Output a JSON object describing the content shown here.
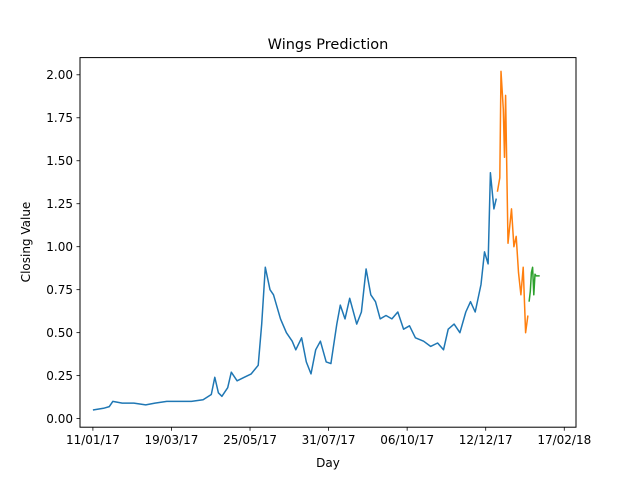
{
  "chart_data": {
    "type": "line",
    "title": "Wings Prediction",
    "xlabel": "Day",
    "ylabel": "Closing Value",
    "x_ticks": [
      "11/01/17",
      "19/03/17",
      "25/05/17",
      "31/07/17",
      "06/10/17",
      "12/12/17",
      "17/02/18"
    ],
    "y_ticks": [
      "0.00",
      "0.25",
      "0.50",
      "0.75",
      "1.00",
      "1.25",
      "1.50",
      "1.75",
      "2.00"
    ],
    "xlim": [
      "2016-12-31",
      "2018-02-27"
    ],
    "ylim": [
      -0.05,
      2.1
    ],
    "grid": false,
    "legend": "none",
    "series": [
      {
        "color": "#1f77b4",
        "points": [
          [
            "2017-01-11",
            0.05
          ],
          [
            "2017-01-20",
            0.06
          ],
          [
            "2017-01-25",
            0.07
          ],
          [
            "2017-01-28",
            0.1
          ],
          [
            "2017-02-05",
            0.09
          ],
          [
            "2017-02-15",
            0.09
          ],
          [
            "2017-02-25",
            0.08
          ],
          [
            "2017-03-05",
            0.09
          ],
          [
            "2017-03-15",
            0.1
          ],
          [
            "2017-03-25",
            0.1
          ],
          [
            "2017-04-05",
            0.1
          ],
          [
            "2017-04-15",
            0.11
          ],
          [
            "2017-04-22",
            0.14
          ],
          [
            "2017-04-25",
            0.24
          ],
          [
            "2017-04-28",
            0.15
          ],
          [
            "2017-05-01",
            0.13
          ],
          [
            "2017-05-06",
            0.18
          ],
          [
            "2017-05-09",
            0.27
          ],
          [
            "2017-05-14",
            0.22
          ],
          [
            "2017-05-20",
            0.24
          ],
          [
            "2017-05-26",
            0.26
          ],
          [
            "2017-06-01",
            0.31
          ],
          [
            "2017-06-04",
            0.55
          ],
          [
            "2017-06-07",
            0.88
          ],
          [
            "2017-06-11",
            0.75
          ],
          [
            "2017-06-14",
            0.72
          ],
          [
            "2017-06-20",
            0.58
          ],
          [
            "2017-06-25",
            0.5
          ],
          [
            "2017-06-30",
            0.45
          ],
          [
            "2017-07-03",
            0.4
          ],
          [
            "2017-07-08",
            0.47
          ],
          [
            "2017-07-12",
            0.33
          ],
          [
            "2017-07-16",
            0.26
          ],
          [
            "2017-07-20",
            0.4
          ],
          [
            "2017-07-24",
            0.45
          ],
          [
            "2017-07-29",
            0.33
          ],
          [
            "2017-08-02",
            0.32
          ],
          [
            "2017-08-07",
            0.55
          ],
          [
            "2017-08-10",
            0.66
          ],
          [
            "2017-08-14",
            0.58
          ],
          [
            "2017-08-18",
            0.7
          ],
          [
            "2017-08-24",
            0.55
          ],
          [
            "2017-08-28",
            0.62
          ],
          [
            "2017-09-01",
            0.87
          ],
          [
            "2017-09-05",
            0.72
          ],
          [
            "2017-09-09",
            0.68
          ],
          [
            "2017-09-13",
            0.58
          ],
          [
            "2017-09-18",
            0.6
          ],
          [
            "2017-09-23",
            0.58
          ],
          [
            "2017-09-28",
            0.62
          ],
          [
            "2017-10-03",
            0.52
          ],
          [
            "2017-10-08",
            0.54
          ],
          [
            "2017-10-13",
            0.47
          ],
          [
            "2017-10-20",
            0.45
          ],
          [
            "2017-10-26",
            0.42
          ],
          [
            "2017-11-01",
            0.44
          ],
          [
            "2017-11-06",
            0.4
          ],
          [
            "2017-11-10",
            0.52
          ],
          [
            "2017-11-15",
            0.55
          ],
          [
            "2017-11-20",
            0.5
          ],
          [
            "2017-11-25",
            0.62
          ],
          [
            "2017-11-29",
            0.68
          ],
          [
            "2017-12-03",
            0.62
          ],
          [
            "2017-12-08",
            0.78
          ],
          [
            "2017-12-11",
            0.97
          ],
          [
            "2017-12-14",
            0.9
          ],
          [
            "2017-12-16",
            1.43
          ],
          [
            "2017-12-19",
            1.22
          ],
          [
            "2017-12-21",
            1.28
          ]
        ]
      },
      {
        "color": "#ff7f0e",
        "points": [
          [
            "2017-12-22",
            1.32
          ],
          [
            "2017-12-24",
            1.4
          ],
          [
            "2017-12-25",
            2.02
          ],
          [
            "2017-12-27",
            1.8
          ],
          [
            "2017-12-28",
            1.52
          ],
          [
            "2017-12-29",
            1.88
          ],
          [
            "2017-12-31",
            1.02
          ],
          [
            "2018-01-03",
            1.22
          ],
          [
            "2018-01-05",
            1.0
          ],
          [
            "2018-01-07",
            1.06
          ],
          [
            "2018-01-09",
            0.85
          ],
          [
            "2018-01-11",
            0.72
          ],
          [
            "2018-01-13",
            0.88
          ],
          [
            "2018-01-15",
            0.5
          ],
          [
            "2018-01-17",
            0.6
          ]
        ]
      },
      {
        "color": "#2ca02c",
        "points": [
          [
            "2018-01-18",
            0.68
          ],
          [
            "2018-01-19",
            0.74
          ],
          [
            "2018-01-20",
            0.85
          ],
          [
            "2018-01-21",
            0.88
          ],
          [
            "2018-01-22",
            0.72
          ],
          [
            "2018-01-23",
            0.84
          ],
          [
            "2018-01-24",
            0.83
          ],
          [
            "2018-01-27",
            0.83
          ]
        ]
      }
    ]
  }
}
